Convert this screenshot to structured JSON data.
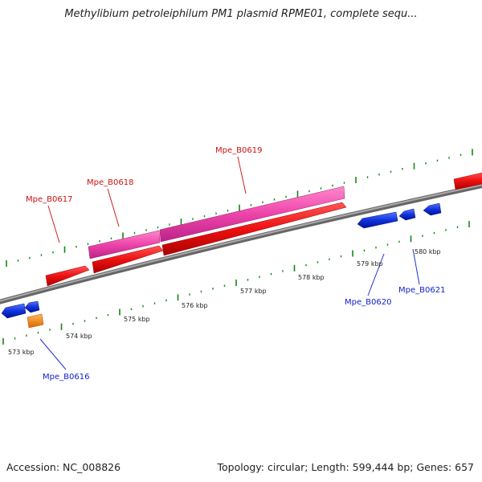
{
  "title": "Methylibium petroleiphilum PM1 plasmid RPME01, complete sequ...",
  "footer": {
    "accession": "Accession: NC_008826",
    "summary": "Topology: circular; Length: 599,444 bp; Genes: 657"
  },
  "colors": {
    "cds": "#ee1111",
    "cds_dark": "#aa0000",
    "rna": "#ee44aa",
    "reverse": "#1133dd",
    "orange": "#ff8811",
    "backbone": "#888888",
    "ticks": "#118811",
    "forward_label": "#cc1111",
    "reverse_label": "#1122cc"
  },
  "kbp_labels": [
    "573 kbp",
    "574 kbp",
    "575 kbp",
    "576 kbp",
    "577 kbp",
    "578 kbp",
    "579 kbp",
    "580 kbp"
  ],
  "gene_labels": {
    "forward": [
      "Mpe_B0617",
      "Mpe_B0618",
      "Mpe_B0619"
    ],
    "reverse": [
      "Mpe_B0616",
      "Mpe_B0620",
      "Mpe_B0621"
    ]
  }
}
